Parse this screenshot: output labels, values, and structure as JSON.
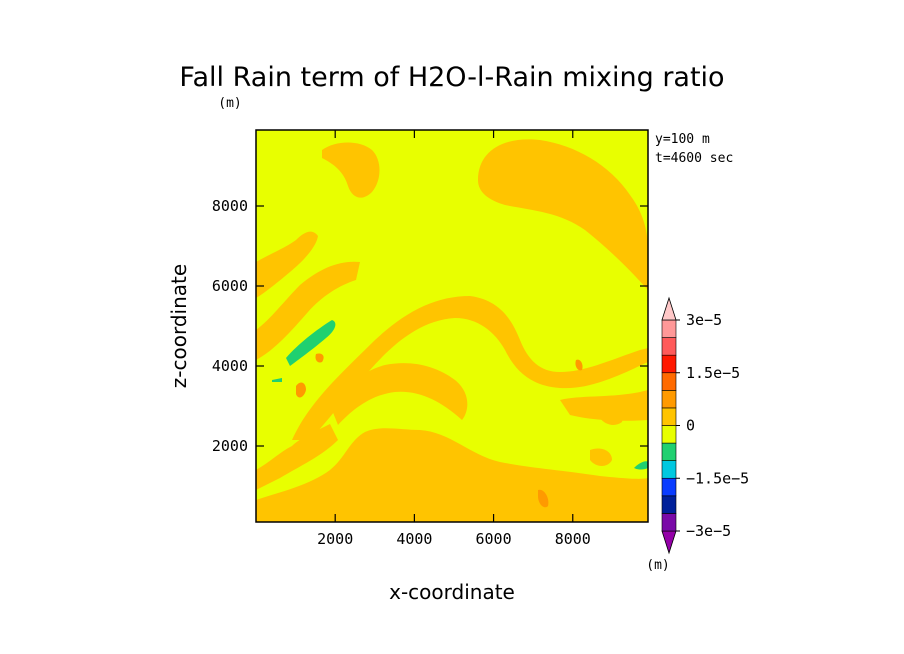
{
  "chart_data": {
    "type": "heatmap",
    "title": "Fall Rain term of H2O-l-Rain mixing ratio",
    "title_unit": "(m)",
    "xlabel": "x-coordinate",
    "ylabel": "z-coordinate",
    "xlim": [
      0,
      9900
    ],
    "ylim": [
      100,
      9900
    ],
    "xticks": [
      2000,
      4000,
      6000,
      8000
    ],
    "yticks": [
      2000,
      4000,
      6000,
      8000
    ],
    "annotations": [
      "y=100 m",
      "t=4600 sec"
    ],
    "colorbar": {
      "ticks": [
        3e-05,
        1.5e-05,
        0,
        -1.5e-05,
        -3e-05
      ],
      "tick_labels": [
        "3e-5",
        "1.5e-5",
        "0",
        "-1.5e-5",
        "-3e-5"
      ],
      "unit": "(m)",
      "levels": [
        {
          "range": [
            -3.5e-05,
            -3e-05
          ],
          "color": "#9400a8"
        },
        {
          "range": [
            -3e-05,
            -2.5e-05
          ],
          "color": "#7a0aa8"
        },
        {
          "range": [
            -2.5e-05,
            -2e-05
          ],
          "color": "#00209a"
        },
        {
          "range": [
            -2e-05,
            -1.5e-05
          ],
          "color": "#0a3cff"
        },
        {
          "range": [
            -1.5e-05,
            -1e-05
          ],
          "color": "#00c8e0"
        },
        {
          "range": [
            -1e-05,
            -5e-06
          ],
          "color": "#20d070"
        },
        {
          "range": [
            -5e-06,
            0
          ],
          "color": "#e8ff00"
        },
        {
          "range": [
            0,
            5e-06
          ],
          "color": "#ffc400"
        },
        {
          "range": [
            5e-06,
            1e-05
          ],
          "color": "#ff9a00"
        },
        {
          "range": [
            1e-05,
            1.5e-05
          ],
          "color": "#ff6a00"
        },
        {
          "range": [
            1.5e-05,
            2e-05
          ],
          "color": "#ff1800"
        },
        {
          "range": [
            2e-05,
            2.5e-05
          ],
          "color": "#ff5a5a"
        },
        {
          "range": [
            2.5e-05,
            3e-05
          ],
          "color": "#ff9898"
        },
        {
          "range": [
            3e-05,
            3.5e-05
          ],
          "color": "#ffc8c8"
        }
      ]
    },
    "field_regions": [
      {
        "level": "background",
        "color": "#e8ff00"
      },
      {
        "level": "0..5e-6",
        "color": "#ffc400"
      },
      {
        "level": "5e-6..1e-5",
        "color": "#ff9a00"
      },
      {
        "level": "-1e-5..-5e-6",
        "color": "#20d070"
      }
    ]
  }
}
